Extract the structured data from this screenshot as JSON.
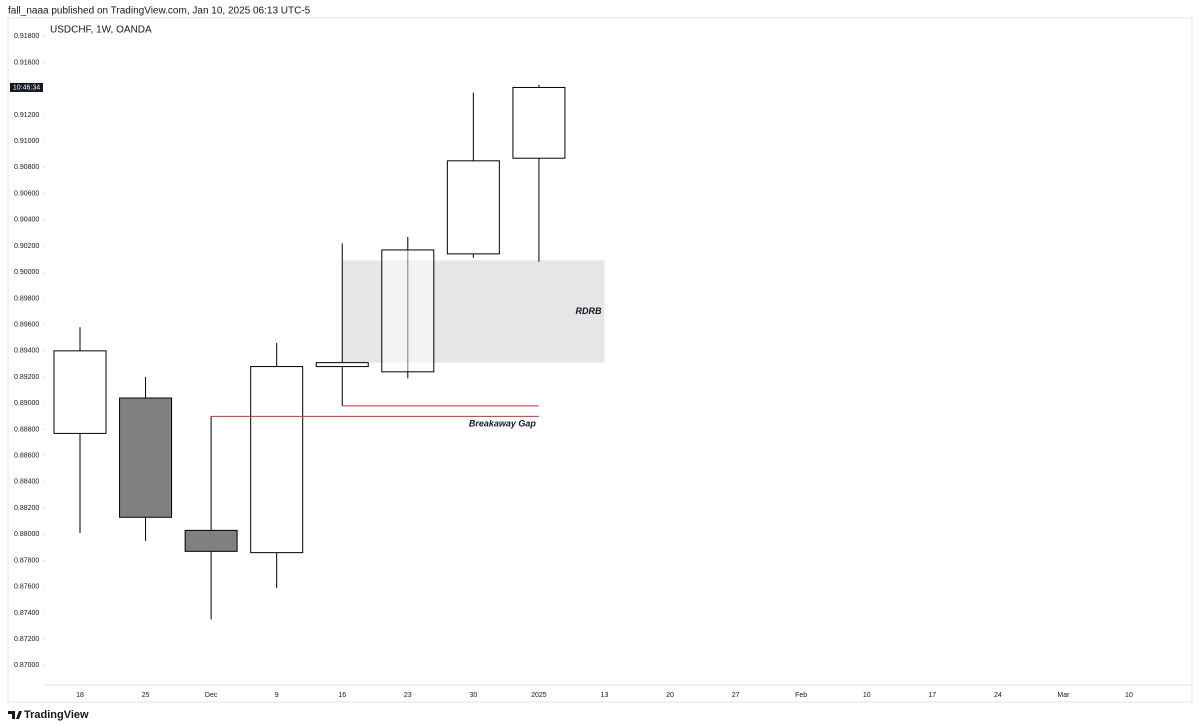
{
  "header": {
    "published": "fall_naaa published on TradingView.com, Jan 10, 2025 06:13 UTC-5"
  },
  "footer": {
    "brand": "TradingView"
  },
  "chart_data": {
    "type": "candlestick",
    "title": "USDCHF, 1W, OANDA",
    "categories": [
      "18",
      "25",
      "Dec",
      "9",
      "16",
      "23",
      "30",
      "2025",
      "13",
      "20",
      "27",
      "Feb",
      "10",
      "17",
      "24",
      "Mar",
      "10"
    ],
    "open": [
      0.8877,
      0.8904,
      0.8803,
      0.8786,
      0.8928,
      0.8924,
      0.9014,
      0.9087,
      null,
      null,
      null,
      null,
      null,
      null,
      null,
      null,
      null
    ],
    "high": [
      0.8958,
      0.892,
      0.889,
      0.8946,
      0.9022,
      0.9027,
      0.9137,
      0.9143,
      null,
      null,
      null,
      null,
      null,
      null,
      null,
      null,
      null
    ],
    "low": [
      0.8801,
      0.8795,
      0.8735,
      0.8759,
      0.8898,
      0.8919,
      0.9011,
      0.9008,
      null,
      null,
      null,
      null,
      null,
      null,
      null,
      null,
      null
    ],
    "close": [
      0.894,
      0.8813,
      0.8787,
      0.8928,
      0.8931,
      0.9017,
      0.9085,
      0.9141,
      null,
      null,
      null,
      null,
      null,
      null,
      null,
      null,
      null
    ],
    "up_color": "#ffffff",
    "down_color": "#808080",
    "ylim": [
      0.8685,
      0.9194
    ],
    "yticks": [
      {
        "value": 0.87,
        "label": "0.87000"
      },
      {
        "value": 0.872,
        "label": "0.87200"
      },
      {
        "value": 0.874,
        "label": "0.87400"
      },
      {
        "value": 0.876,
        "label": "0.87600"
      },
      {
        "value": 0.878,
        "label": "0.87800"
      },
      {
        "value": 0.88,
        "label": "0.88000"
      },
      {
        "value": 0.882,
        "label": "0.88200"
      },
      {
        "value": 0.884,
        "label": "0.88400"
      },
      {
        "value": 0.886,
        "label": "0.88600"
      },
      {
        "value": 0.888,
        "label": "0.88800"
      },
      {
        "value": 0.89,
        "label": "0.89000"
      },
      {
        "value": 0.892,
        "label": "0.89200"
      },
      {
        "value": 0.894,
        "label": "0.89400"
      },
      {
        "value": 0.896,
        "label": "0.89600"
      },
      {
        "value": 0.898,
        "label": "0.89800"
      },
      {
        "value": 0.9,
        "label": "0.90000"
      },
      {
        "value": 0.902,
        "label": "0.90200"
      },
      {
        "value": 0.904,
        "label": "0.90400"
      },
      {
        "value": 0.906,
        "label": "0.90600"
      },
      {
        "value": 0.908,
        "label": "0.90800"
      },
      {
        "value": 0.91,
        "label": "0.91000"
      },
      {
        "value": 0.912,
        "label": "0.91200"
      },
      {
        "value": 0.916,
        "label": "0.91600"
      },
      {
        "value": 0.918,
        "label": "0.91800"
      }
    ],
    "price_marker": {
      "value": 0.9141,
      "label": "10:46:34"
    },
    "zone": {
      "label": "RDRB",
      "y0": 0.8931,
      "y1": 0.9009,
      "color": "#e6e6e6"
    },
    "gap": {
      "label": "Breakaway Gap",
      "levels": [
        0.889,
        0.8898
      ],
      "color": "#d32f2f"
    }
  }
}
